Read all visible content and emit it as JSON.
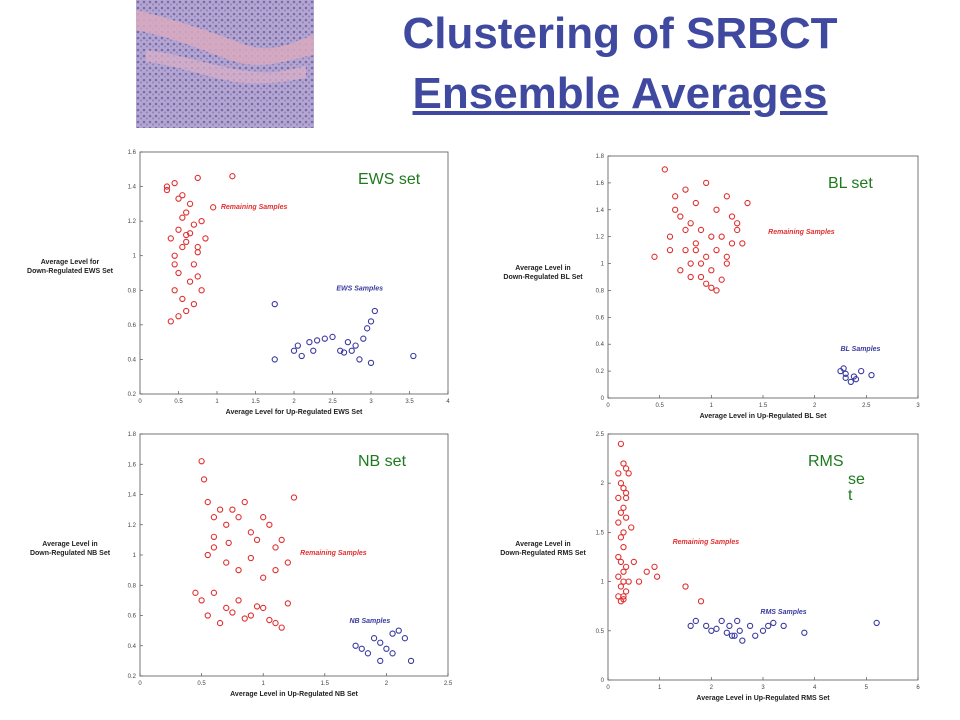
{
  "title": {
    "line1": "Clustering of SRBCT",
    "line2": "Ensemble Averages"
  },
  "colors": {
    "title": "#3f49a0",
    "remaining": "#e03030",
    "samples": "#3a3aa0",
    "set_label": "#1e7a1e"
  },
  "thumbnail": {
    "icon": "tissue-histology-image"
  },
  "chart_data": [
    {
      "type": "scatter",
      "set_label": "EWS set",
      "xlabel": "Average Level for Up-Regulated EWS Set",
      "ylabel": "Average Level for\nDown-Regulated EWS Set",
      "xlim": [
        0,
        4
      ],
      "ylim": [
        0.2,
        1.6
      ],
      "xticks": [
        0,
        0.5,
        1,
        1.5,
        2,
        2.5,
        3,
        3.5,
        4
      ],
      "yticks": [
        0.2,
        0.4,
        0.6,
        0.8,
        1,
        1.2,
        1.4,
        1.6
      ],
      "tick_labels_x": [
        "0",
        "0.5",
        "1",
        "1.5",
        "2",
        "2.5",
        "3",
        "3.5",
        "4"
      ],
      "tick_labels_y": [
        "0.2",
        "0.4",
        "0.6",
        "0.8",
        "1",
        "1.2",
        "1.4",
        "1.6"
      ],
      "series": [
        {
          "name": "Remaining Samples",
          "color": "#e03030",
          "label_pos": [
            1.05,
            1.27
          ],
          "x": [
            0.35,
            0.45,
            0.55,
            0.65,
            0.75,
            0.8,
            0.6,
            0.5,
            0.7,
            0.4,
            0.55,
            0.85,
            0.45,
            0.6,
            0.7,
            0.5,
            0.75,
            0.65,
            0.45,
            0.55,
            0.8,
            0.7,
            0.6,
            0.5,
            0.4,
            0.55,
            0.65,
            0.75,
            0.95,
            1.2,
            0.35,
            0.5,
            0.6,
            0.45,
            0.75
          ],
          "y": [
            1.4,
            1.42,
            1.35,
            1.3,
            1.45,
            1.2,
            1.25,
            1.15,
            1.18,
            1.1,
            1.05,
            1.1,
            1.0,
            1.08,
            0.95,
            0.9,
            0.88,
            0.85,
            0.8,
            0.75,
            0.8,
            0.72,
            0.68,
            0.65,
            0.62,
            1.22,
            1.13,
            1.05,
            1.28,
            1.46,
            1.38,
            1.33,
            1.12,
            0.95,
            1.02
          ]
        },
        {
          "name": "EWS Samples",
          "color": "#3a3aa0",
          "label_pos": [
            2.55,
            0.8
          ],
          "x": [
            1.75,
            1.75,
            2.0,
            2.05,
            2.1,
            2.2,
            2.25,
            2.4,
            2.5,
            2.6,
            2.7,
            2.8,
            2.85,
            2.9,
            2.95,
            3.0,
            3.05,
            3.0,
            3.55,
            2.75,
            2.3,
            2.65
          ],
          "y": [
            0.72,
            0.4,
            0.45,
            0.48,
            0.42,
            0.5,
            0.45,
            0.52,
            0.53,
            0.45,
            0.5,
            0.48,
            0.4,
            0.52,
            0.58,
            0.62,
            0.68,
            0.38,
            0.42,
            0.45,
            0.51,
            0.44
          ]
        }
      ]
    },
    {
      "type": "scatter",
      "set_label": "BL set",
      "xlabel": "Average Level in Up-Regulated BL Set",
      "ylabel": "Average Level in\nDown-Regulated BL Set",
      "xlim": [
        0,
        3
      ],
      "ylim": [
        0,
        1.8
      ],
      "xticks": [
        0,
        0.5,
        1,
        1.5,
        2,
        2.5,
        3
      ],
      "yticks": [
        0,
        0.2,
        0.4,
        0.6,
        0.8,
        1,
        1.2,
        1.4,
        1.6,
        1.8
      ],
      "tick_labels_x": [
        "0",
        "0.5",
        "1",
        "1.5",
        "2",
        "2.5",
        "3"
      ],
      "tick_labels_y": [
        "0",
        "0.2",
        "0.4",
        "0.6",
        "0.8",
        "1",
        "1.2",
        "1.4",
        "1.6",
        "1.8"
      ],
      "series": [
        {
          "name": "Remaining Samples",
          "color": "#e03030",
          "label_pos": [
            1.55,
            1.22
          ],
          "x": [
            0.55,
            0.65,
            0.75,
            0.85,
            0.95,
            1.05,
            1.15,
            1.25,
            0.7,
            0.8,
            0.9,
            1.0,
            1.1,
            1.2,
            0.6,
            0.75,
            0.85,
            0.95,
            1.05,
            1.15,
            0.7,
            0.8,
            0.9,
            1.0,
            1.1,
            0.65,
            0.75,
            0.85,
            0.95,
            1.05,
            1.25,
            1.35,
            0.45,
            0.6,
            0.9,
            1.0,
            1.15,
            1.3,
            0.8,
            1.2
          ],
          "y": [
            1.7,
            1.5,
            1.55,
            1.45,
            1.6,
            1.4,
            1.5,
            1.3,
            1.35,
            1.3,
            1.25,
            1.2,
            1.2,
            1.15,
            1.2,
            1.1,
            1.1,
            1.05,
            1.1,
            1.0,
            0.95,
            1.0,
            0.9,
            0.95,
            0.88,
            1.4,
            1.25,
            1.15,
            0.85,
            0.8,
            1.25,
            1.45,
            1.05,
            1.1,
            1.0,
            0.82,
            1.05,
            1.15,
            0.9,
            1.35
          ]
        },
        {
          "name": "BL Samples",
          "color": "#3a3aa0",
          "label_pos": [
            2.25,
            0.35
          ],
          "x": [
            2.25,
            2.3,
            2.35,
            2.3,
            2.4,
            2.45,
            2.55,
            2.28,
            2.38
          ],
          "y": [
            0.2,
            0.15,
            0.12,
            0.18,
            0.14,
            0.2,
            0.17,
            0.22,
            0.16
          ]
        }
      ]
    },
    {
      "type": "scatter",
      "set_label": "NB set",
      "xlabel": "Average Level in Up-Regulated NB Set",
      "ylabel": "Average Level in\nDown-Regulated NB Set",
      "xlim": [
        0,
        2.5
      ],
      "ylim": [
        0.2,
        1.8
      ],
      "xticks": [
        0,
        0.5,
        1,
        1.5,
        2,
        2.5
      ],
      "yticks": [
        0.2,
        0.4,
        0.6,
        0.8,
        1,
        1.2,
        1.4,
        1.6,
        1.8
      ],
      "tick_labels_x": [
        "0",
        "0.5",
        "1",
        "1.5",
        "2",
        "2.5"
      ],
      "tick_labels_y": [
        "0.2",
        "0.4",
        "0.6",
        "0.8",
        "1",
        "1.2",
        "1.4",
        "1.6",
        "1.8"
      ],
      "series": [
        {
          "name": "Remaining Samples",
          "color": "#e03030",
          "label_pos": [
            1.3,
            1.0
          ],
          "x": [
            0.5,
            0.52,
            0.55,
            0.6,
            0.65,
            0.7,
            0.75,
            0.8,
            0.85,
            0.9,
            0.95,
            1.0,
            1.05,
            1.1,
            1.15,
            1.2,
            0.55,
            0.6,
            0.7,
            0.8,
            0.9,
            1.0,
            1.1,
            0.5,
            0.6,
            0.7,
            0.8,
            0.9,
            1.0,
            1.1,
            1.2,
            1.25,
            0.45,
            0.55,
            0.65,
            0.75,
            0.85,
            0.95,
            1.05,
            1.15,
            0.6,
            0.72
          ],
          "y": [
            1.62,
            1.5,
            1.35,
            1.25,
            1.3,
            1.2,
            1.3,
            1.25,
            1.35,
            1.15,
            1.1,
            1.25,
            1.2,
            1.05,
            1.1,
            0.95,
            1.0,
            1.05,
            0.95,
            0.9,
            0.98,
            0.85,
            0.9,
            0.7,
            0.75,
            0.65,
            0.7,
            0.6,
            0.65,
            0.55,
            0.68,
            1.38,
            0.75,
            0.6,
            0.55,
            0.62,
            0.58,
            0.66,
            0.57,
            0.52,
            1.12,
            1.08
          ]
        },
        {
          "name": "NB Samples",
          "color": "#3a3aa0",
          "label_pos": [
            1.7,
            0.55
          ],
          "x": [
            1.75,
            1.8,
            1.85,
            1.9,
            1.95,
            2.0,
            2.05,
            2.1,
            2.15,
            2.2,
            1.95,
            2.05
          ],
          "y": [
            0.4,
            0.38,
            0.35,
            0.45,
            0.3,
            0.38,
            0.35,
            0.5,
            0.45,
            0.3,
            0.42,
            0.48
          ]
        }
      ]
    },
    {
      "type": "scatter",
      "set_label": "RMS set",
      "set_label_parts": [
        "RMS",
        "se",
        "t"
      ],
      "xlabel": "Average Level in Up-Regulated RMS Set",
      "ylabel": "Average Level in\nDown-Regulated RMS Set",
      "xlim": [
        0,
        6
      ],
      "ylim": [
        0,
        2.5
      ],
      "xticks": [
        0,
        1,
        2,
        3,
        4,
        5,
        6
      ],
      "yticks": [
        0,
        0.5,
        1,
        1.5,
        2,
        2.5
      ],
      "tick_labels_x": [
        "0",
        "1",
        "2",
        "3",
        "4",
        "5",
        "6"
      ],
      "tick_labels_y": [
        "0",
        "0.5",
        "1",
        "1.5",
        "2",
        "2.5"
      ],
      "series": [
        {
          "name": "Remaining Samples",
          "color": "#e03030",
          "label_pos": [
            1.25,
            1.38
          ],
          "x": [
            0.25,
            0.3,
            0.35,
            0.4,
            0.2,
            0.25,
            0.3,
            0.35,
            0.2,
            0.3,
            0.25,
            0.35,
            0.2,
            0.3,
            0.25,
            0.3,
            0.2,
            0.25,
            0.35,
            0.3,
            0.2,
            0.3,
            0.25,
            0.35,
            0.3,
            0.2,
            0.25,
            0.4,
            0.5,
            0.6,
            0.75,
            0.9,
            0.95,
            1.5,
            1.8,
            0.35,
            0.45,
            0.3
          ],
          "y": [
            2.4,
            2.2,
            2.15,
            2.1,
            2.1,
            2.0,
            1.95,
            1.9,
            1.85,
            1.75,
            1.7,
            1.65,
            1.6,
            1.5,
            1.45,
            1.35,
            1.25,
            1.2,
            1.15,
            1.1,
            1.05,
            1.0,
            0.95,
            0.9,
            0.85,
            0.85,
            0.8,
            1.0,
            1.2,
            1.0,
            1.1,
            1.15,
            1.05,
            0.95,
            0.8,
            1.85,
            1.55,
            0.82
          ]
        },
        {
          "name": "RMS Samples",
          "color": "#3a3aa0",
          "label_pos": [
            2.95,
            0.67
          ],
          "x": [
            1.6,
            1.7,
            1.9,
            2.0,
            2.1,
            2.2,
            2.3,
            2.35,
            2.45,
            2.5,
            2.55,
            2.6,
            2.75,
            2.85,
            3.0,
            3.1,
            3.2,
            3.4,
            3.8,
            5.2,
            2.4
          ],
          "y": [
            0.55,
            0.6,
            0.55,
            0.5,
            0.52,
            0.6,
            0.48,
            0.55,
            0.45,
            0.6,
            0.5,
            0.4,
            0.55,
            0.45,
            0.5,
            0.55,
            0.58,
            0.55,
            0.48,
            0.58,
            0.45
          ]
        }
      ]
    }
  ]
}
